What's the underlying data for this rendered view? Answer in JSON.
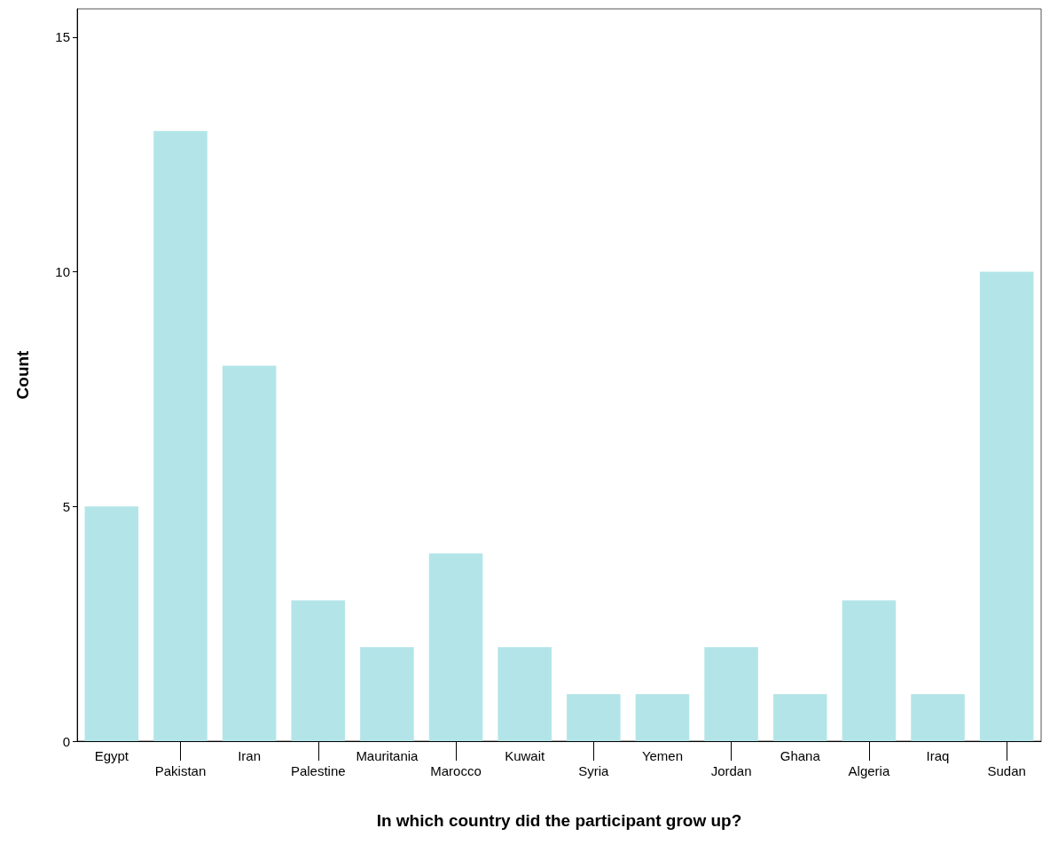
{
  "chart_data": {
    "type": "bar",
    "xlabel": "In which country did the participant grow up?",
    "ylabel": "Count",
    "categories": [
      "Egypt",
      "Pakistan",
      "Iran",
      "Palestine",
      "Mauritania",
      "Marocco",
      "Kuwait",
      "Syria",
      "Yemen",
      "Jordan",
      "Ghana",
      "Algeria",
      "Iraq",
      "Sudan"
    ],
    "values": [
      5,
      13,
      8,
      3,
      2,
      4,
      2,
      1,
      1,
      2,
      1,
      3,
      1,
      10
    ],
    "color": "#b3e5e8",
    "ylim": [
      0,
      15.6
    ],
    "yticks": [
      0,
      5,
      10,
      15
    ]
  }
}
